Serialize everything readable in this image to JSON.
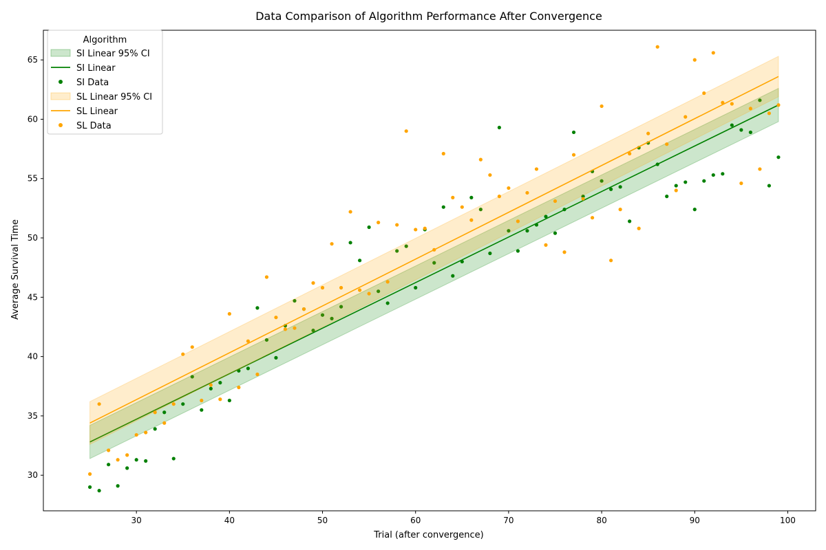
{
  "chart_data": {
    "type": "scatter",
    "title": "Data Comparison of Algorithm Performance After Convergence",
    "xlabel": "Trial (after convergence)",
    "ylabel": "Average Survival Time",
    "xlim": [
      20,
      103
    ],
    "ylim": [
      27,
      67.5
    ],
    "xticks": [
      30,
      40,
      50,
      60,
      70,
      80,
      90,
      100
    ],
    "yticks": [
      30,
      35,
      40,
      45,
      50,
      55,
      60,
      65
    ],
    "grid": false,
    "legend": {
      "title": "Algorithm",
      "placement": "top-left",
      "entries": [
        "SI Linear 95% CI",
        "SI Linear",
        "SI Data",
        "SL Linear 95% CI",
        "SL Linear",
        "SL Data"
      ]
    },
    "series": [
      {
        "name": "SI",
        "color": "#008000",
        "fit": {
          "x": [
            25,
            99
          ],
          "y": [
            32.8,
            61.2
          ]
        },
        "ci": {
          "x": [
            25,
            99
          ],
          "lower": [
            31.4,
            59.8
          ],
          "upper": [
            34.2,
            62.6
          ]
        },
        "points": [
          [
            25,
            29.0
          ],
          [
            26,
            28.7
          ],
          [
            27,
            30.9
          ],
          [
            28,
            29.1
          ],
          [
            29,
            30.6
          ],
          [
            30,
            31.3
          ],
          [
            31,
            31.2
          ],
          [
            32,
            33.9
          ],
          [
            33,
            35.3
          ],
          [
            34,
            31.4
          ],
          [
            35,
            36.0
          ],
          [
            36,
            38.3
          ],
          [
            37,
            35.5
          ],
          [
            38,
            37.3
          ],
          [
            39,
            37.8
          ],
          [
            40,
            36.3
          ],
          [
            41,
            38.8
          ],
          [
            42,
            39.0
          ],
          [
            43,
            44.1
          ],
          [
            44,
            41.4
          ],
          [
            45,
            39.9
          ],
          [
            46,
            42.6
          ],
          [
            47,
            44.7
          ],
          [
            48,
            44.0
          ],
          [
            49,
            42.2
          ],
          [
            50,
            43.5
          ],
          [
            51,
            43.2
          ],
          [
            52,
            44.2
          ],
          [
            53,
            49.6
          ],
          [
            54,
            48.1
          ],
          [
            55,
            50.9
          ],
          [
            56,
            45.5
          ],
          [
            57,
            44.5
          ],
          [
            58,
            48.9
          ],
          [
            59,
            49.3
          ],
          [
            60,
            45.8
          ],
          [
            61,
            50.7
          ],
          [
            62,
            47.9
          ],
          [
            63,
            52.6
          ],
          [
            64,
            46.8
          ],
          [
            65,
            48.0
          ],
          [
            66,
            53.4
          ],
          [
            67,
            52.4
          ],
          [
            68,
            48.7
          ],
          [
            69,
            59.3
          ],
          [
            70,
            50.6
          ],
          [
            71,
            48.9
          ],
          [
            72,
            50.6
          ],
          [
            73,
            51.1
          ],
          [
            74,
            51.8
          ],
          [
            75,
            50.4
          ],
          [
            76,
            52.4
          ],
          [
            77,
            58.9
          ],
          [
            78,
            53.5
          ],
          [
            79,
            55.6
          ],
          [
            80,
            54.8
          ],
          [
            81,
            54.1
          ],
          [
            82,
            54.3
          ],
          [
            83,
            51.4
          ],
          [
            84,
            57.6
          ],
          [
            85,
            58.0
          ],
          [
            86,
            56.2
          ],
          [
            87,
            53.5
          ],
          [
            88,
            54.4
          ],
          [
            89,
            54.7
          ],
          [
            90,
            52.4
          ],
          [
            91,
            54.8
          ],
          [
            92,
            55.3
          ],
          [
            93,
            55.4
          ],
          [
            94,
            59.5
          ],
          [
            95,
            59.1
          ],
          [
            96,
            58.9
          ],
          [
            97,
            61.6
          ],
          [
            98,
            54.4
          ],
          [
            99,
            56.8
          ]
        ]
      },
      {
        "name": "SL",
        "color": "#ffa500",
        "fit": {
          "x": [
            25,
            99
          ],
          "y": [
            34.4,
            63.6
          ]
        },
        "ci": {
          "x": [
            25,
            99
          ],
          "lower": [
            32.6,
            61.9
          ],
          "upper": [
            36.2,
            65.3
          ]
        },
        "points": [
          [
            25,
            30.1
          ],
          [
            26,
            36.0
          ],
          [
            27,
            32.1
          ],
          [
            28,
            31.3
          ],
          [
            29,
            31.7
          ],
          [
            30,
            33.4
          ],
          [
            31,
            33.6
          ],
          [
            32,
            35.3
          ],
          [
            33,
            34.4
          ],
          [
            34,
            36.0
          ],
          [
            35,
            40.2
          ],
          [
            36,
            40.8
          ],
          [
            37,
            36.3
          ],
          [
            38,
            37.6
          ],
          [
            39,
            36.4
          ],
          [
            40,
            43.6
          ],
          [
            41,
            37.4
          ],
          [
            42,
            41.3
          ],
          [
            43,
            38.5
          ],
          [
            44,
            46.7
          ],
          [
            45,
            43.3
          ],
          [
            46,
            42.3
          ],
          [
            47,
            42.4
          ],
          [
            48,
            44.0
          ],
          [
            49,
            46.2
          ],
          [
            50,
            45.8
          ],
          [
            51,
            49.5
          ],
          [
            52,
            45.8
          ],
          [
            53,
            52.2
          ],
          [
            54,
            45.6
          ],
          [
            55,
            45.3
          ],
          [
            56,
            51.3
          ],
          [
            57,
            46.3
          ],
          [
            58,
            51.1
          ],
          [
            59,
            59.0
          ],
          [
            60,
            50.7
          ],
          [
            61,
            50.8
          ],
          [
            62,
            49.0
          ],
          [
            63,
            57.1
          ],
          [
            64,
            53.4
          ],
          [
            65,
            52.6
          ],
          [
            66,
            51.5
          ],
          [
            67,
            56.6
          ],
          [
            68,
            55.3
          ],
          [
            69,
            53.5
          ],
          [
            70,
            54.2
          ],
          [
            71,
            51.4
          ],
          [
            72,
            53.8
          ],
          [
            73,
            55.8
          ],
          [
            74,
            49.4
          ],
          [
            75,
            53.1
          ],
          [
            76,
            48.8
          ],
          [
            77,
            57.0
          ],
          [
            78,
            53.3
          ],
          [
            79,
            51.7
          ],
          [
            80,
            61.1
          ],
          [
            81,
            48.1
          ],
          [
            82,
            52.4
          ],
          [
            83,
            57.1
          ],
          [
            84,
            50.8
          ],
          [
            85,
            58.8
          ],
          [
            86,
            66.1
          ],
          [
            87,
            57.9
          ],
          [
            88,
            54.0
          ],
          [
            89,
            60.2
          ],
          [
            90,
            65.0
          ],
          [
            91,
            62.2
          ],
          [
            92,
            65.6
          ],
          [
            93,
            61.4
          ],
          [
            94,
            61.3
          ],
          [
            95,
            54.6
          ],
          [
            96,
            60.9
          ],
          [
            97,
            55.8
          ],
          [
            98,
            60.5
          ],
          [
            99,
            61.2
          ]
        ]
      }
    ]
  }
}
